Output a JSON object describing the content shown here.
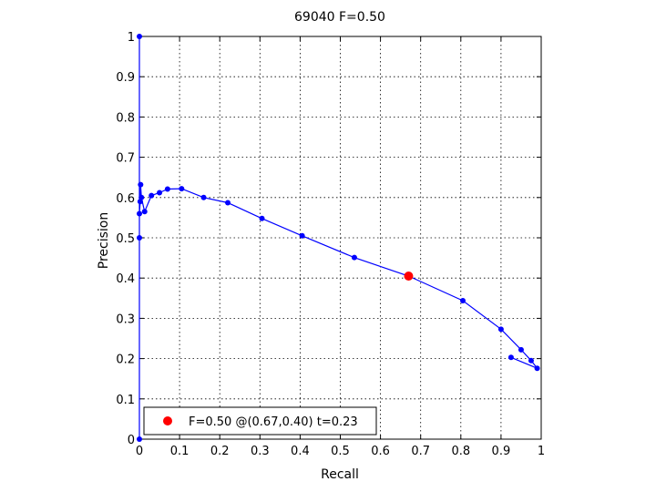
{
  "chart_data": {
    "type": "line",
    "title": "69040 F=0.50",
    "xlabel": "Recall",
    "ylabel": "Precision",
    "xlim": [
      0,
      1
    ],
    "ylim": [
      0,
      1
    ],
    "xticks": [
      "0",
      "0.1",
      "0.2",
      "0.3",
      "0.4",
      "0.5",
      "0.6",
      "0.7",
      "0.8",
      "0.9",
      "1"
    ],
    "yticks": [
      "0",
      "0.1",
      "0.2",
      "0.3",
      "0.4",
      "0.5",
      "0.6",
      "0.7",
      "0.8",
      "0.9",
      "1"
    ],
    "grid": true,
    "legend_position": "bottom-left",
    "series": [
      {
        "color": "#0000ff",
        "x": [
          0,
          0,
          0,
          0,
          0.002,
          0.003,
          0.005,
          0.013,
          0.03,
          0.05,
          0.07,
          0.105,
          0.16,
          0.22,
          0.305,
          0.405,
          0.535,
          0.67,
          0.805,
          0.9,
          0.95,
          0.975,
          0.99,
          0.925
        ],
        "y": [
          0,
          0.5,
          1.0,
          0.56,
          0.59,
          0.632,
          0.6,
          0.565,
          0.605,
          0.612,
          0.621,
          0.622,
          0.6,
          0.587,
          0.548,
          0.505,
          0.451,
          0.405,
          0.344,
          0.273,
          0.222,
          0.195,
          0.176,
          0.203
        ]
      }
    ],
    "highlight": {
      "x": 0.67,
      "y": 0.405,
      "color": "#ff0000",
      "label": "F=0.50 @(0.67,0.40) t=0.23"
    }
  }
}
